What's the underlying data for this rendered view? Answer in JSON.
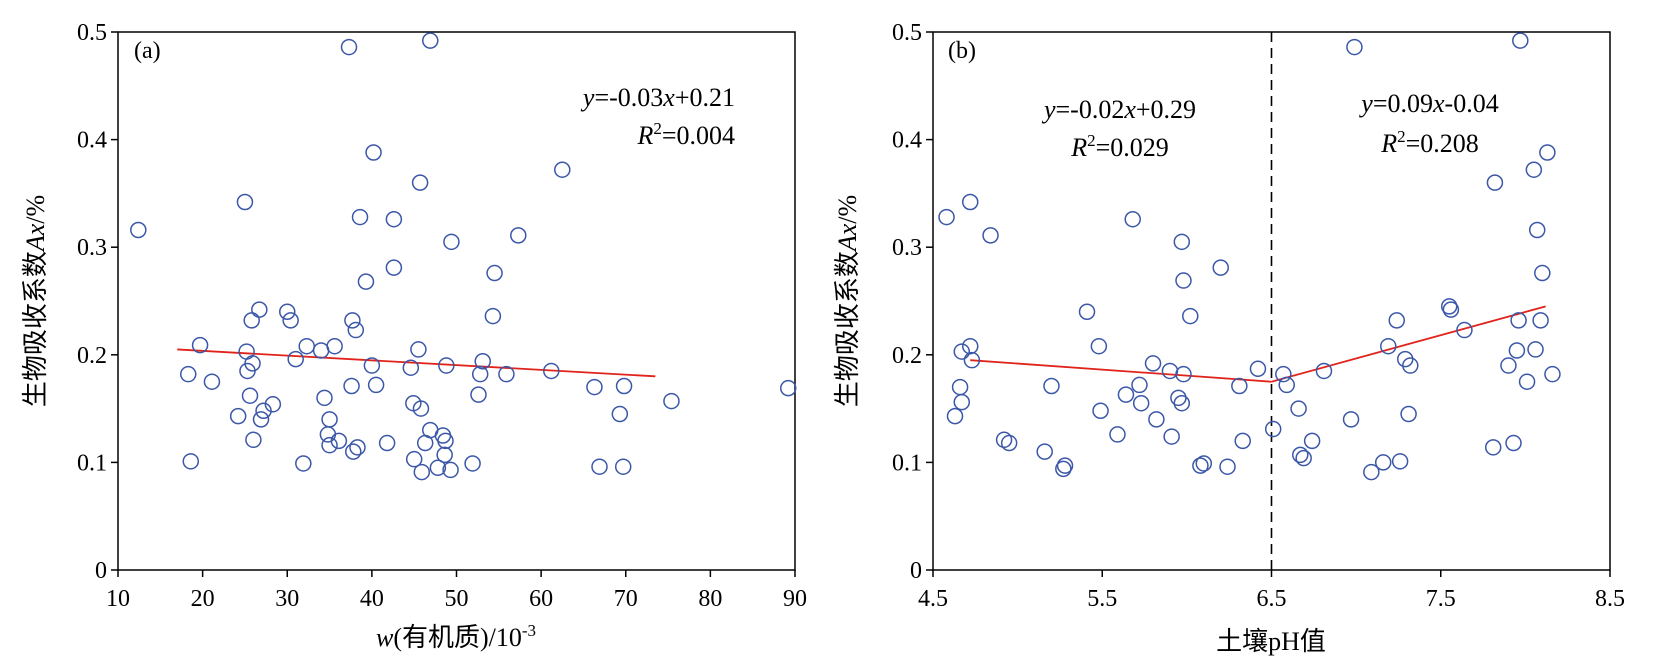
{
  "chart_data": [
    {
      "type": "scatter",
      "panel_label": "(a)",
      "xlabel": "w(有机质)/10⁻³",
      "ylabel": "生物吸收系数Ax/%",
      "xlim": [
        10,
        90
      ],
      "ylim": [
        0,
        0.5
      ],
      "x_ticks": [
        "10",
        "20",
        "30",
        "40",
        "50",
        "60",
        "70",
        "80",
        "90"
      ],
      "y_ticks": [
        "0",
        "0.1",
        "0.2",
        "0.3",
        "0.4",
        "0.5"
      ],
      "equation": "y=-0.03x+0.21",
      "r2": "R²=0.004",
      "fit_lines": [
        {
          "x": [
            17,
            73.5
          ],
          "y": [
            0.205,
            0.18
          ]
        }
      ],
      "points": [
        [
          12.4,
          0.316
        ],
        [
          18.3,
          0.182
        ],
        [
          18.6,
          0.101
        ],
        [
          19.7,
          0.209
        ],
        [
          21.1,
          0.175
        ],
        [
          24.2,
          0.143
        ],
        [
          25.0,
          0.342
        ],
        [
          25.2,
          0.203
        ],
        [
          25.3,
          0.185
        ],
        [
          25.6,
          0.162
        ],
        [
          25.8,
          0.232
        ],
        [
          25.9,
          0.192
        ],
        [
          26.0,
          0.121
        ],
        [
          26.7,
          0.242
        ],
        [
          26.9,
          0.14
        ],
        [
          27.2,
          0.148
        ],
        [
          28.3,
          0.154
        ],
        [
          30.0,
          0.24
        ],
        [
          30.4,
          0.232
        ],
        [
          31.0,
          0.196
        ],
        [
          31.9,
          0.099
        ],
        [
          32.3,
          0.208
        ],
        [
          34.0,
          0.204
        ],
        [
          34.4,
          0.16
        ],
        [
          34.8,
          0.126
        ],
        [
          35.0,
          0.14
        ],
        [
          35.0,
          0.116
        ],
        [
          35.6,
          0.208
        ],
        [
          36.1,
          0.12
        ],
        [
          37.3,
          0.486
        ],
        [
          37.6,
          0.171
        ],
        [
          37.7,
          0.232
        ],
        [
          37.8,
          0.11
        ],
        [
          38.1,
          0.223
        ],
        [
          38.3,
          0.114
        ],
        [
          38.6,
          0.328
        ],
        [
          39.3,
          0.268
        ],
        [
          40.0,
          0.19
        ],
        [
          40.2,
          0.388
        ],
        [
          40.5,
          0.172
        ],
        [
          41.8,
          0.118
        ],
        [
          42.6,
          0.326
        ],
        [
          42.6,
          0.281
        ],
        [
          44.6,
          0.188
        ],
        [
          44.9,
          0.155
        ],
        [
          45.0,
          0.103
        ],
        [
          45.5,
          0.205
        ],
        [
          45.7,
          0.36
        ],
        [
          45.8,
          0.15
        ],
        [
          45.9,
          0.091
        ],
        [
          46.3,
          0.118
        ],
        [
          46.9,
          0.492
        ],
        [
          46.9,
          0.13
        ],
        [
          47.8,
          0.095
        ],
        [
          48.4,
          0.125
        ],
        [
          48.6,
          0.107
        ],
        [
          48.7,
          0.12
        ],
        [
          48.8,
          0.19
        ],
        [
          49.3,
          0.093
        ],
        [
          49.4,
          0.305
        ],
        [
          51.9,
          0.099
        ],
        [
          52.6,
          0.163
        ],
        [
          52.8,
          0.182
        ],
        [
          53.1,
          0.194
        ],
        [
          54.3,
          0.236
        ],
        [
          54.5,
          0.276
        ],
        [
          55.9,
          0.182
        ],
        [
          57.3,
          0.311
        ],
        [
          61.2,
          0.185
        ],
        [
          62.5,
          0.372
        ],
        [
          66.3,
          0.17
        ],
        [
          66.9,
          0.096
        ],
        [
          69.3,
          0.145
        ],
        [
          69.7,
          0.096
        ],
        [
          69.8,
          0.171
        ],
        [
          75.4,
          0.157
        ],
        [
          89.2,
          0.169
        ]
      ]
    },
    {
      "type": "scatter",
      "panel_label": "(b)",
      "xlabel": "土壤pH值",
      "ylabel": "生物吸收系数Ax/%",
      "xlim": [
        4.5,
        8.5
      ],
      "ylim": [
        0,
        0.5
      ],
      "x_ticks": [
        "4.5",
        "5.5",
        "6.5",
        "7.5",
        "8.5"
      ],
      "y_ticks": [
        "0",
        "0.1",
        "0.2",
        "0.3",
        "0.4",
        "0.5"
      ],
      "divider_x": 6.5,
      "equations": [
        {
          "equation": "y=-0.02x+0.29",
          "r2": "R²=0.029"
        },
        {
          "equation": "y=0.09x-0.04",
          "r2": "R²=0.208"
        }
      ],
      "fit_lines": [
        {
          "x": [
            4.72,
            6.5
          ],
          "y": [
            0.195,
            0.175
          ]
        },
        {
          "x": [
            6.5,
            8.12
          ],
          "y": [
            0.175,
            0.245
          ]
        }
      ],
      "points": [
        [
          4.58,
          0.328
        ],
        [
          4.63,
          0.143
        ],
        [
          4.66,
          0.17
        ],
        [
          4.67,
          0.156
        ],
        [
          4.67,
          0.203
        ],
        [
          4.72,
          0.342
        ],
        [
          4.72,
          0.208
        ],
        [
          4.73,
          0.195
        ],
        [
          4.84,
          0.311
        ],
        [
          4.92,
          0.121
        ],
        [
          4.95,
          0.118
        ],
        [
          5.16,
          0.11
        ],
        [
          5.2,
          0.171
        ],
        [
          5.27,
          0.094
        ],
        [
          5.28,
          0.097
        ],
        [
          5.41,
          0.24
        ],
        [
          5.48,
          0.208
        ],
        [
          5.49,
          0.148
        ],
        [
          5.59,
          0.126
        ],
        [
          5.64,
          0.163
        ],
        [
          5.68,
          0.326
        ],
        [
          5.72,
          0.172
        ],
        [
          5.73,
          0.155
        ],
        [
          5.8,
          0.192
        ],
        [
          5.82,
          0.14
        ],
        [
          5.9,
          0.185
        ],
        [
          5.91,
          0.124
        ],
        [
          5.95,
          0.16
        ],
        [
          5.97,
          0.155
        ],
        [
          5.97,
          0.305
        ],
        [
          5.98,
          0.269
        ],
        [
          5.98,
          0.182
        ],
        [
          6.02,
          0.236
        ],
        [
          6.08,
          0.097
        ],
        [
          6.1,
          0.099
        ],
        [
          6.2,
          0.281
        ],
        [
          6.24,
          0.096
        ],
        [
          6.31,
          0.171
        ],
        [
          6.33,
          0.12
        ],
        [
          6.42,
          0.187
        ],
        [
          6.51,
          0.131
        ],
        [
          6.57,
          0.182
        ],
        [
          6.59,
          0.172
        ],
        [
          6.66,
          0.15
        ],
        [
          6.67,
          0.107
        ],
        [
          6.69,
          0.104
        ],
        [
          6.74,
          0.12
        ],
        [
          6.81,
          0.185
        ],
        [
          6.97,
          0.14
        ],
        [
          6.99,
          0.486
        ],
        [
          7.09,
          0.091
        ],
        [
          7.16,
          0.1
        ],
        [
          7.19,
          0.208
        ],
        [
          7.24,
          0.232
        ],
        [
          7.26,
          0.101
        ],
        [
          7.29,
          0.196
        ],
        [
          7.31,
          0.145
        ],
        [
          7.32,
          0.19
        ],
        [
          7.55,
          0.245
        ],
        [
          7.56,
          0.242
        ],
        [
          7.64,
          0.223
        ],
        [
          7.81,
          0.114
        ],
        [
          7.82,
          0.36
        ],
        [
          7.9,
          0.19
        ],
        [
          7.93,
          0.118
        ],
        [
          7.95,
          0.204
        ],
        [
          7.96,
          0.232
        ],
        [
          7.97,
          0.492
        ],
        [
          8.01,
          0.175
        ],
        [
          8.05,
          0.372
        ],
        [
          8.06,
          0.205
        ],
        [
          8.07,
          0.316
        ],
        [
          8.09,
          0.232
        ],
        [
          8.1,
          0.276
        ],
        [
          8.13,
          0.388
        ],
        [
          8.16,
          0.182
        ]
      ]
    }
  ]
}
